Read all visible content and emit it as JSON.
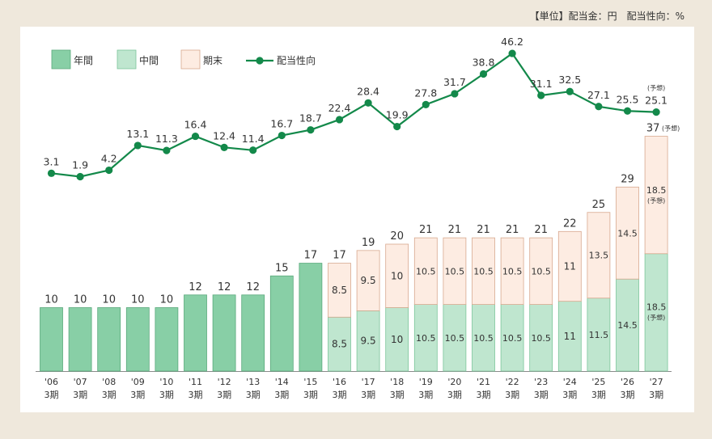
{
  "unit_note": "【単位】配当金：円　配当性向：%",
  "chart_data": {
    "type": "bar",
    "legend": [
      {
        "key": "annual",
        "label": "年間",
        "color": "#88cfa6"
      },
      {
        "key": "interim",
        "label": "中間",
        "color": "#bfe6cf"
      },
      {
        "key": "final",
        "label": "期末",
        "color": "#fdece2"
      },
      {
        "key": "payout",
        "label": "配当性向",
        "color": "#13894a"
      }
    ],
    "legend_position": "top-left",
    "forecast_label": "(予想)",
    "categories": [
      {
        "year": "'06",
        "period": "3期"
      },
      {
        "year": "'07",
        "period": "3期"
      },
      {
        "year": "'08",
        "period": "3期"
      },
      {
        "year": "'09",
        "period": "3期"
      },
      {
        "year": "'10",
        "period": "3期"
      },
      {
        "year": "'11",
        "period": "3期"
      },
      {
        "year": "'12",
        "period": "3期"
      },
      {
        "year": "'13",
        "period": "3期"
      },
      {
        "year": "'14",
        "period": "3期"
      },
      {
        "year": "'15",
        "period": "3期"
      },
      {
        "year": "'16",
        "period": "3期"
      },
      {
        "year": "'17",
        "period": "3期"
      },
      {
        "year": "'18",
        "period": "3期"
      },
      {
        "year": "'19",
        "period": "3期"
      },
      {
        "year": "'20",
        "period": "3期"
      },
      {
        "year": "'21",
        "period": "3期"
      },
      {
        "year": "'22",
        "period": "3期"
      },
      {
        "year": "'23",
        "period": "3期"
      },
      {
        "year": "'24",
        "period": "3期"
      },
      {
        "year": "'25",
        "period": "3期"
      },
      {
        "year": "'26",
        "period": "3期"
      },
      {
        "year": "'27",
        "period": "3期"
      }
    ],
    "annual": [
      10,
      10,
      10,
      10,
      10,
      12,
      12,
      12,
      15,
      17,
      null,
      null,
      null,
      null,
      null,
      null,
      null,
      null,
      null,
      null,
      null,
      null
    ],
    "interim": [
      null,
      null,
      null,
      null,
      null,
      null,
      null,
      null,
      null,
      null,
      8.5,
      9.5,
      10,
      10.5,
      10.5,
      10.5,
      10.5,
      10.5,
      11,
      11.5,
      14.5,
      18.5
    ],
    "final": [
      null,
      null,
      null,
      null,
      null,
      null,
      null,
      null,
      null,
      null,
      8.5,
      9.5,
      10,
      10.5,
      10.5,
      10.5,
      10.5,
      10.5,
      11,
      13.5,
      14.5,
      18.5
    ],
    "totals": [
      10,
      10,
      10,
      10,
      10,
      12,
      12,
      12,
      15,
      17,
      17,
      19,
      20,
      21,
      21,
      21,
      21,
      21,
      22,
      25,
      29,
      37
    ],
    "payout_ratio": [
      3.1,
      1.9,
      4.2,
      13.1,
      11.3,
      16.4,
      12.4,
      11.4,
      16.7,
      18.7,
      22.4,
      28.4,
      19.9,
      27.8,
      31.7,
      38.8,
      46.2,
      31.1,
      32.5,
      27.1,
      25.5,
      25.1
    ],
    "forecast": [
      false,
      false,
      false,
      false,
      false,
      false,
      false,
      false,
      false,
      false,
      false,
      false,
      false,
      false,
      false,
      false,
      false,
      false,
      false,
      false,
      false,
      true
    ],
    "grid": false
  }
}
